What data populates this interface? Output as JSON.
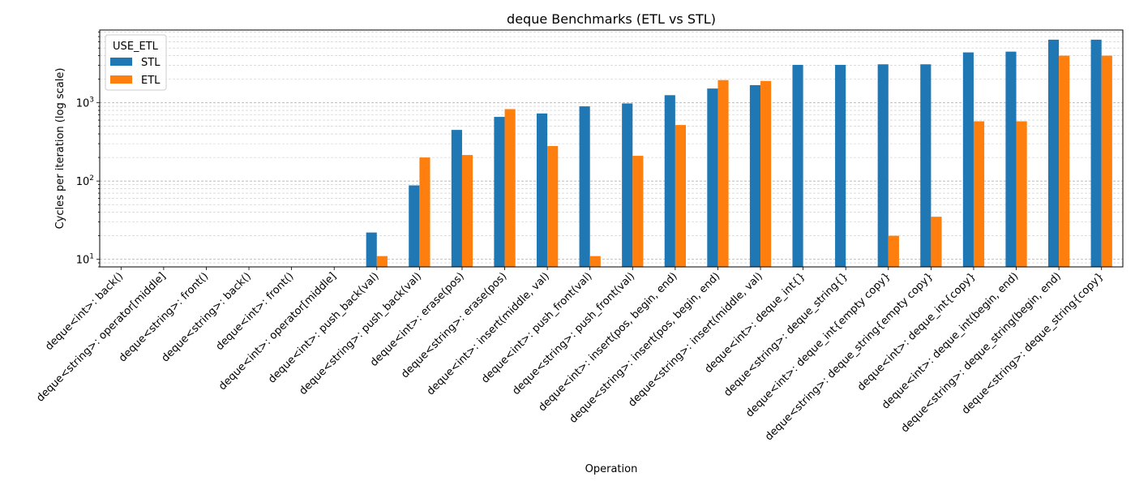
{
  "chart_data": {
    "type": "bar",
    "title": "deque Benchmarks (ETL vs STL)",
    "xlabel": "Operation",
    "ylabel": "Cycles per iteration (log scale)",
    "yscale": "log",
    "ylim": [
      8,
      8500
    ],
    "yticks": [
      {
        "value": 10,
        "base": "10",
        "exp": "1"
      },
      {
        "value": 100,
        "base": "10",
        "exp": "2"
      },
      {
        "value": 1000,
        "base": "10",
        "exp": "3"
      }
    ],
    "grid": "both-major-and-minor-y",
    "legend": {
      "title": "USE_ETL",
      "position": "top-left"
    },
    "categories": [
      "deque<int>: back()",
      "deque<string>: operator[middle]",
      "deque<string>: front()",
      "deque<string>: back()",
      "deque<int>: front()",
      "deque<int>: operator[middle]",
      "deque<int>: push_back(val)",
      "deque<string>: push_back(val)",
      "deque<int>: erase(pos)",
      "deque<string>: erase(pos)",
      "deque<int>: insert(middle, val)",
      "deque<int>: push_front(val)",
      "deque<string>: push_front(val)",
      "deque<int>: insert(pos, begin, end)",
      "deque<string>: insert(pos, begin, end)",
      "deque<string>: insert(middle, val)",
      "deque<int>: deque_int{}",
      "deque<string>: deque_string{}",
      "deque<int>: deque_int{empty copy}",
      "deque<string>: deque_string{empty copy}",
      "deque<int>: deque_int{copy}",
      "deque<int>: deque_int(begin, end)",
      "deque<string>: deque_string(begin, end)",
      "deque<string>: deque_string{copy}"
    ],
    "series": [
      {
        "name": "STL",
        "color": "#1f77b4",
        "values": [
          0,
          0,
          0,
          0,
          0,
          0,
          22,
          88,
          450,
          660,
          730,
          900,
          980,
          1250,
          1520,
          1680,
          3050,
          3050,
          3100,
          3100,
          4400,
          4500,
          6400,
          6400
        ]
      },
      {
        "name": "ETL",
        "color": "#ff7f0e",
        "values": [
          0,
          0,
          0,
          0,
          0,
          0,
          11,
          200,
          215,
          830,
          280,
          11,
          210,
          520,
          1950,
          1900,
          0,
          0,
          20,
          35,
          580,
          580,
          4000,
          4000
        ]
      }
    ]
  }
}
